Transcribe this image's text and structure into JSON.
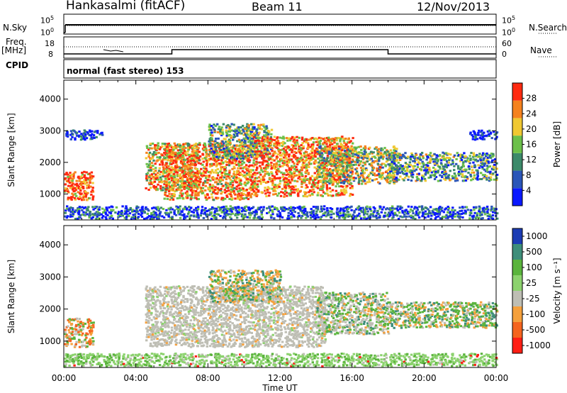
{
  "header": {
    "site": "Hankasalmi (fitACF)",
    "beam": "Beam 11",
    "date": "12/Nov/2013"
  },
  "strips": {
    "nsky_label": "N.Sky",
    "nsearch_label": "N.Search",
    "nsky_ticks": [
      "10^5",
      "10^0"
    ],
    "nsearch_ticks": [
      "10^5",
      "10^0"
    ],
    "freq_label": "Freq.",
    "freq_unit": "[MHz]",
    "freq_ticks": [
      "18",
      "8"
    ],
    "nave_label": "Nave",
    "nave_ticks": [
      "60",
      "0"
    ],
    "cpid_label": "CPID",
    "cpid_text": "normal (fast stereo) 153"
  },
  "chart_data": [
    {
      "type": "heatmap",
      "title": "",
      "variable": "Power",
      "ylabel": "Slant Range [km]",
      "ylim": [
        180,
        4600
      ],
      "yticks": [
        "1000",
        "2000",
        "3000",
        "4000"
      ],
      "colorbar_label": "Power [dB]",
      "colorbar_ticks": [
        "4",
        "8",
        "12",
        "16",
        "20",
        "24",
        "28"
      ],
      "colorbar_range": [
        0,
        32
      ],
      "colors": [
        "#0a18ff",
        "#2a55b8",
        "#3c8a6a",
        "#6cc04a",
        "#f0c832",
        "#f5821e",
        "#ff2a10"
      ],
      "scatter_regions": [
        {
          "t_start": 0.0,
          "t_end": 24.0,
          "r_low": 200,
          "r_high": 600,
          "mean_level": 0.2
        },
        {
          "t_start": 0.0,
          "t_end": 1.6,
          "r_low": 800,
          "r_high": 1700,
          "mean_level": 0.9
        },
        {
          "t_start": 0.0,
          "t_end": 2.1,
          "r_low": 2700,
          "r_high": 3000,
          "mean_level": 0.1
        },
        {
          "t_start": 4.5,
          "t_end": 7.5,
          "r_low": 1100,
          "r_high": 2600,
          "mean_level": 0.7
        },
        {
          "t_start": 5.5,
          "t_end": 10.5,
          "r_low": 800,
          "r_high": 2600,
          "mean_level": 0.75
        },
        {
          "t_start": 8.0,
          "t_end": 11.5,
          "r_low": 2100,
          "r_high": 3200,
          "mean_level": 0.45
        },
        {
          "t_start": 10.5,
          "t_end": 16.0,
          "r_low": 900,
          "r_high": 2800,
          "mean_level": 0.8
        },
        {
          "t_start": 14.0,
          "t_end": 18.5,
          "r_low": 1300,
          "r_high": 2500,
          "mean_level": 0.55
        },
        {
          "t_start": 18.0,
          "t_end": 24.0,
          "r_low": 1400,
          "r_high": 2300,
          "mean_level": 0.4
        },
        {
          "t_start": 22.5,
          "t_end": 24.0,
          "r_low": 2700,
          "r_high": 3000,
          "mean_level": 0.1
        }
      ]
    },
    {
      "type": "heatmap",
      "title": "",
      "variable": "Velocity",
      "ylabel": "Slant Range [km]",
      "xlabel": "Time UT",
      "ylim": [
        180,
        4600
      ],
      "xlim": [
        0,
        24
      ],
      "xticks": [
        "00:00",
        "04:00",
        "08:00",
        "12:00",
        "16:00",
        "20:00",
        "00:00"
      ],
      "yticks": [
        "1000",
        "2000",
        "3000",
        "4000"
      ],
      "colorbar_label": "Velocity [m s^-1]",
      "colorbar_ticks": [
        "1000",
        "500",
        "100",
        "25",
        "-25",
        "-100",
        "-500",
        "-1000"
      ],
      "colors": [
        "#1c3cb4",
        "#3e8e7a",
        "#5ab43c",
        "#8cd26e",
        "#bebeb4",
        "#f5a03c",
        "#f5641e",
        "#ff1e14"
      ],
      "scatter_regions": [
        {
          "t_start": 0.0,
          "t_end": 24.0,
          "r_low": 200,
          "r_high": 600,
          "class": "slow-green"
        },
        {
          "t_start": 0.0,
          "t_end": 1.6,
          "r_low": 800,
          "r_high": 1700,
          "class": "mixed"
        },
        {
          "t_start": 4.5,
          "t_end": 14.5,
          "r_low": 800,
          "r_high": 2700,
          "class": "ground"
        },
        {
          "t_start": 8.0,
          "t_end": 12.0,
          "r_low": 2200,
          "r_high": 3200,
          "class": "mixed-orange"
        },
        {
          "t_start": 14.0,
          "t_end": 18.0,
          "r_low": 1200,
          "r_high": 2500,
          "class": "ground-green"
        },
        {
          "t_start": 18.0,
          "t_end": 24.0,
          "r_low": 1400,
          "r_high": 2200,
          "class": "green-orange"
        }
      ]
    }
  ]
}
